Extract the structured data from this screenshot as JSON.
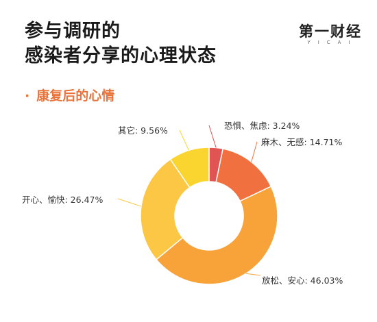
{
  "header": {
    "title_line1": "参与调研的",
    "title_line2": "感染者分享的心理状态",
    "logo_text": "第一财经",
    "logo_sub": "YICAI"
  },
  "section": {
    "bullet": "·",
    "title": "康复后的心情"
  },
  "chart_data": {
    "type": "pie",
    "donut": true,
    "slices": [
      {
        "label": "恐惧、焦虑: 3.24%",
        "value": 3.24,
        "color": "#e05454"
      },
      {
        "label": "麻木、无感: 14.71%",
        "value": 14.71,
        "color": "#f0713f"
      },
      {
        "label": "放松、安心: 46.03%",
        "value": 46.03,
        "color": "#f8a23a"
      },
      {
        "label": "开心、愉快: 26.47%",
        "value": 26.47,
        "color": "#fbc744"
      },
      {
        "label": "其它: 9.56%",
        "value": 9.56,
        "color": "#fbd52f"
      }
    ]
  }
}
